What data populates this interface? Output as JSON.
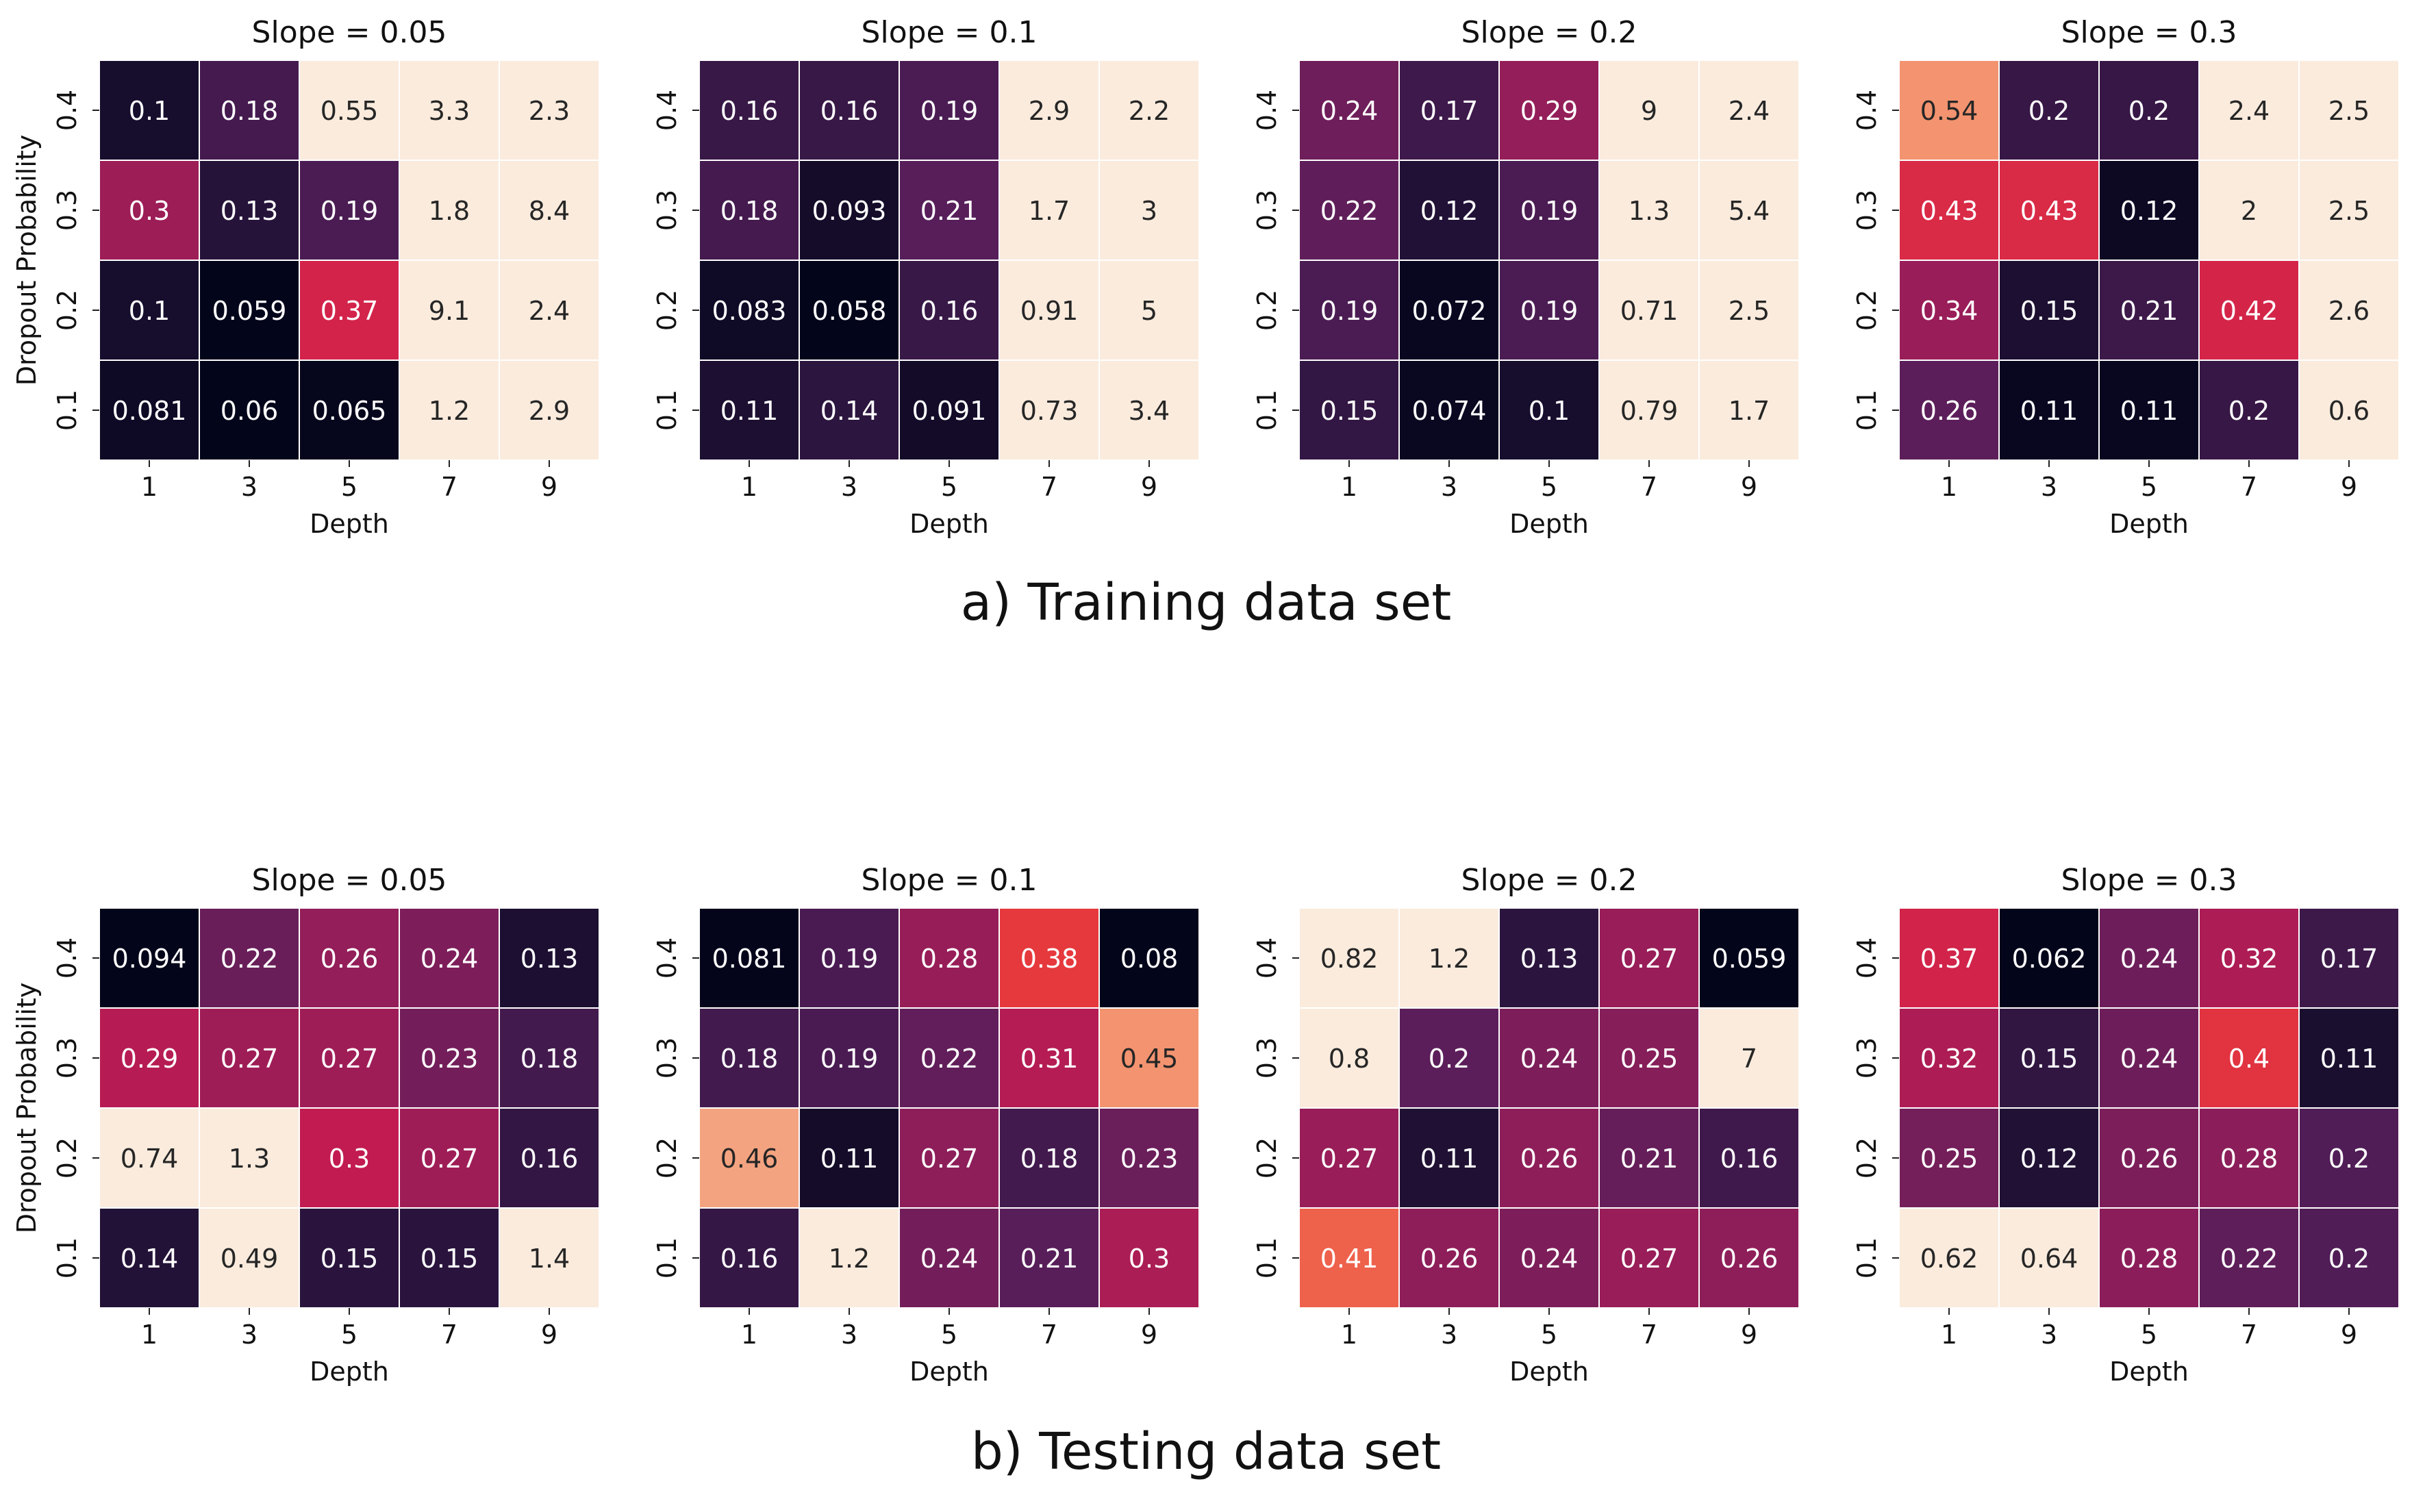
{
  "sections": [
    {
      "caption": "a) Training data set"
    },
    {
      "caption": "b) Testing data set"
    }
  ],
  "chart_data": [
    {
      "type": "heatmap",
      "section": 0,
      "title": "Slope = 0.05",
      "xlabel": "Depth",
      "ylabel": "Dropout Probability",
      "x_ticks": [
        "1",
        "3",
        "5",
        "7",
        "9"
      ],
      "y_ticks": [
        "0.4",
        "0.3",
        "0.2",
        "0.1"
      ],
      "values": [
        [
          "0.1",
          "0.18",
          "0.55",
          "3.3",
          "2.3"
        ],
        [
          "0.3",
          "0.13",
          "0.19",
          "1.8",
          "8.4"
        ],
        [
          "0.1",
          "0.059",
          "0.37",
          "9.1",
          "2.4"
        ],
        [
          "0.081",
          "0.06",
          "0.065",
          "1.2",
          "2.9"
        ]
      ],
      "color_range": [
        0.06,
        0.55
      ]
    },
    {
      "type": "heatmap",
      "section": 0,
      "title": "Slope = 0.1",
      "xlabel": "Depth",
      "ylabel": "Dropout Probability",
      "x_ticks": [
        "1",
        "3",
        "5",
        "7",
        "9"
      ],
      "y_ticks": [
        "0.4",
        "0.3",
        "0.2",
        "0.1"
      ],
      "values": [
        [
          "0.16",
          "0.16",
          "0.19",
          "2.9",
          "2.2"
        ],
        [
          "0.18",
          "0.093",
          "0.21",
          "1.7",
          "3"
        ],
        [
          "0.083",
          "0.058",
          "0.16",
          "0.91",
          "5"
        ],
        [
          "0.11",
          "0.14",
          "0.091",
          "0.73",
          "3.4"
        ]
      ],
      "color_range": [
        0.06,
        0.55
      ]
    },
    {
      "type": "heatmap",
      "section": 0,
      "title": "Slope = 0.2",
      "xlabel": "Depth",
      "ylabel": "Dropout Probability",
      "x_ticks": [
        "1",
        "3",
        "5",
        "7",
        "9"
      ],
      "y_ticks": [
        "0.4",
        "0.3",
        "0.2",
        "0.1"
      ],
      "values": [
        [
          "0.24",
          "0.17",
          "0.29",
          "9",
          "2.4"
        ],
        [
          "0.22",
          "0.12",
          "0.19",
          "1.3",
          "5.4"
        ],
        [
          "0.19",
          "0.072",
          "0.19",
          "0.71",
          "2.5"
        ],
        [
          "0.15",
          "0.074",
          "0.1",
          "0.79",
          "1.7"
        ]
      ],
      "color_range": [
        0.06,
        0.55
      ]
    },
    {
      "type": "heatmap",
      "section": 0,
      "title": "Slope = 0.3",
      "xlabel": "Depth",
      "ylabel": "Dropout Probability",
      "x_ticks": [
        "1",
        "3",
        "5",
        "7",
        "9"
      ],
      "y_ticks": [
        "0.4",
        "0.3",
        "0.2",
        "0.1"
      ],
      "values": [
        [
          "0.54",
          "0.2",
          "0.2",
          "2.4",
          "2.5"
        ],
        [
          "0.43",
          "0.43",
          "0.12",
          "2",
          "2.5"
        ],
        [
          "0.34",
          "0.15",
          "0.21",
          "0.42",
          "2.6"
        ],
        [
          "0.26",
          "0.11",
          "0.11",
          "0.2",
          "0.6"
        ]
      ],
      "color_range": [
        0.1,
        0.6
      ]
    },
    {
      "type": "heatmap",
      "section": 1,
      "title": "Slope = 0.05",
      "xlabel": "Depth",
      "ylabel": "Dropout Probability",
      "x_ticks": [
        "1",
        "3",
        "5",
        "7",
        "9"
      ],
      "y_ticks": [
        "0.4",
        "0.3",
        "0.2",
        "0.1"
      ],
      "values": [
        [
          "0.094",
          "0.22",
          "0.26",
          "0.24",
          "0.13"
        ],
        [
          "0.29",
          "0.27",
          "0.27",
          "0.23",
          "0.18"
        ],
        [
          "0.74",
          "1.3",
          "0.3",
          "0.27",
          "0.16"
        ],
        [
          "0.14",
          "0.49",
          "0.15",
          "0.15",
          "1.4"
        ]
      ],
      "color_range": [
        0.094,
        0.45
      ]
    },
    {
      "type": "heatmap",
      "section": 1,
      "title": "Slope = 0.1",
      "xlabel": "Depth",
      "ylabel": "Dropout Probability",
      "x_ticks": [
        "1",
        "3",
        "5",
        "7",
        "9"
      ],
      "y_ticks": [
        "0.4",
        "0.3",
        "0.2",
        "0.1"
      ],
      "values": [
        [
          "0.081",
          "0.19",
          "0.28",
          "0.38",
          "0.08"
        ],
        [
          "0.18",
          "0.19",
          "0.22",
          "0.31",
          "0.45"
        ],
        [
          "0.46",
          "0.11",
          "0.27",
          "0.18",
          "0.23"
        ],
        [
          "0.16",
          "1.2",
          "0.24",
          "0.21",
          "0.3"
        ]
      ],
      "color_range": [
        0.08,
        0.5
      ]
    },
    {
      "type": "heatmap",
      "section": 1,
      "title": "Slope = 0.2",
      "xlabel": "Depth",
      "ylabel": "Dropout Probability",
      "x_ticks": [
        "1",
        "3",
        "5",
        "7",
        "9"
      ],
      "y_ticks": [
        "0.4",
        "0.3",
        "0.2",
        "0.1"
      ],
      "values": [
        [
          "0.82",
          "1.2",
          "0.13",
          "0.27",
          "0.059"
        ],
        [
          "0.8",
          "0.2",
          "0.24",
          "0.25",
          "7"
        ],
        [
          "0.27",
          "0.11",
          "0.26",
          "0.21",
          "0.16"
        ],
        [
          "0.41",
          "0.26",
          "0.24",
          "0.27",
          "0.26"
        ]
      ],
      "color_range": [
        0.059,
        0.5
      ]
    },
    {
      "type": "heatmap",
      "section": 1,
      "title": "Slope = 0.3",
      "xlabel": "Depth",
      "ylabel": "Dropout Probability",
      "x_ticks": [
        "1",
        "3",
        "5",
        "7",
        "9"
      ],
      "y_ticks": [
        "0.4",
        "0.3",
        "0.2",
        "0.1"
      ],
      "values": [
        [
          "0.37",
          "0.062",
          "0.24",
          "0.32",
          "0.17"
        ],
        [
          "0.32",
          "0.15",
          "0.24",
          "0.4",
          "0.11"
        ],
        [
          "0.25",
          "0.12",
          "0.26",
          "0.28",
          "0.2"
        ],
        [
          "0.62",
          "0.64",
          "0.28",
          "0.22",
          "0.2"
        ]
      ],
      "color_range": [
        0.062,
        0.55
      ]
    }
  ]
}
